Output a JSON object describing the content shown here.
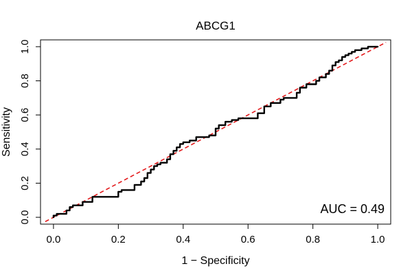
{
  "chart_data": {
    "type": "line",
    "title": "ABCG1",
    "xlabel": "1 − Specificity",
    "ylabel": "Sensitivity",
    "xlim": [
      -0.04,
      1.04
    ],
    "ylim": [
      -0.04,
      1.04
    ],
    "xticks": [
      0.0,
      0.2,
      0.4,
      0.6,
      0.8,
      1.0
    ],
    "yticks": [
      0.0,
      0.2,
      0.4,
      0.6,
      0.8,
      1.0
    ],
    "xtick_labels": [
      "0.0",
      "0.2",
      "0.4",
      "0.6",
      "0.8",
      "1.0"
    ],
    "ytick_labels": [
      "0.0",
      "0.2",
      "0.4",
      "0.6",
      "0.8",
      "1.0"
    ],
    "grid": false,
    "annotation": "AUC = 0.49",
    "reference_line": {
      "x": [
        0,
        1
      ],
      "y": [
        0,
        1
      ],
      "color": "#e31a1c",
      "style": "dashed"
    },
    "series": [
      {
        "color": "#000000",
        "x": [
          0.0,
          0.0,
          0.01,
          0.01,
          0.04,
          0.04,
          0.05,
          0.05,
          0.06,
          0.06,
          0.09,
          0.09,
          0.12,
          0.12,
          0.15,
          0.15,
          0.2,
          0.2,
          0.21,
          0.21,
          0.25,
          0.25,
          0.27,
          0.27,
          0.28,
          0.28,
          0.29,
          0.29,
          0.3,
          0.3,
          0.31,
          0.31,
          0.32,
          0.32,
          0.33,
          0.33,
          0.35,
          0.35,
          0.36,
          0.36,
          0.37,
          0.37,
          0.38,
          0.38,
          0.39,
          0.39,
          0.4,
          0.4,
          0.42,
          0.42,
          0.44,
          0.44,
          0.48,
          0.48,
          0.5,
          0.5,
          0.51,
          0.51,
          0.53,
          0.53,
          0.55,
          0.55,
          0.57,
          0.57,
          0.63,
          0.63,
          0.65,
          0.65,
          0.67,
          0.67,
          0.7,
          0.7,
          0.71,
          0.71,
          0.75,
          0.75,
          0.76,
          0.76,
          0.78,
          0.78,
          0.81,
          0.81,
          0.82,
          0.82,
          0.84,
          0.84,
          0.85,
          0.85,
          0.86,
          0.86,
          0.87,
          0.87,
          0.88,
          0.88,
          0.89,
          0.89,
          0.9,
          0.9,
          0.91,
          0.91,
          0.92,
          0.92,
          0.93,
          0.93,
          0.95,
          0.95,
          0.97,
          0.97,
          1.0
        ],
        "y": [
          0.0,
          0.01,
          0.01,
          0.02,
          0.02,
          0.04,
          0.04,
          0.06,
          0.06,
          0.07,
          0.07,
          0.09,
          0.09,
          0.12,
          0.12,
          0.12,
          0.12,
          0.15,
          0.15,
          0.16,
          0.16,
          0.19,
          0.19,
          0.21,
          0.21,
          0.23,
          0.23,
          0.26,
          0.26,
          0.28,
          0.28,
          0.3,
          0.3,
          0.31,
          0.31,
          0.32,
          0.32,
          0.34,
          0.34,
          0.37,
          0.37,
          0.39,
          0.39,
          0.41,
          0.41,
          0.43,
          0.43,
          0.44,
          0.44,
          0.45,
          0.45,
          0.47,
          0.47,
          0.48,
          0.48,
          0.52,
          0.52,
          0.54,
          0.54,
          0.56,
          0.56,
          0.57,
          0.57,
          0.58,
          0.58,
          0.61,
          0.61,
          0.65,
          0.65,
          0.67,
          0.67,
          0.69,
          0.69,
          0.7,
          0.7,
          0.73,
          0.73,
          0.76,
          0.76,
          0.78,
          0.78,
          0.8,
          0.8,
          0.82,
          0.82,
          0.84,
          0.84,
          0.86,
          0.86,
          0.89,
          0.89,
          0.91,
          0.91,
          0.92,
          0.92,
          0.94,
          0.94,
          0.95,
          0.95,
          0.96,
          0.96,
          0.97,
          0.97,
          0.98,
          0.98,
          0.99,
          0.99,
          1.0,
          1.0
        ]
      }
    ]
  }
}
